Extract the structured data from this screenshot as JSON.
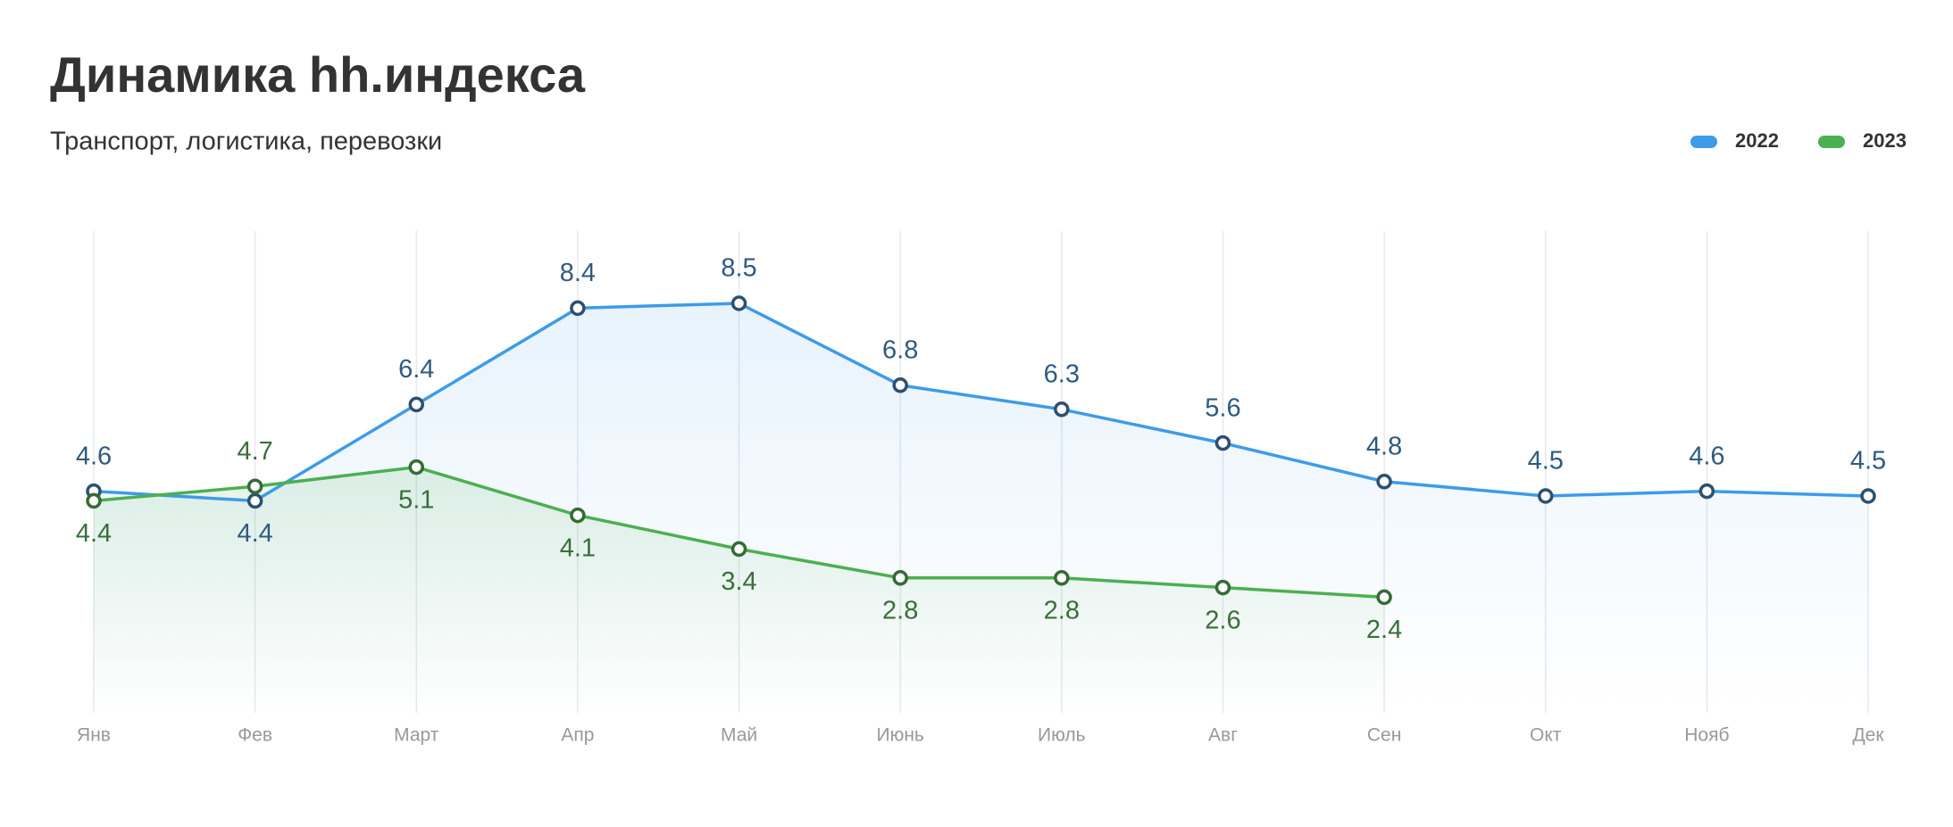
{
  "chart_data": {
    "type": "line",
    "title": "Динамика hh.индекса",
    "subtitle": "Транспорт, логистика, перевозки",
    "categories": [
      "Янв",
      "Фев",
      "Март",
      "Апр",
      "Май",
      "Июнь",
      "Июль",
      "Авг",
      "Сен",
      "Окт",
      "Нояб",
      "Дек"
    ],
    "series": [
      {
        "name": "2022",
        "color": "#3d9be9",
        "label_color": "#2f5a80",
        "point_color": "#2f4f6f",
        "values": [
          4.6,
          4.4,
          6.4,
          8.4,
          8.5,
          6.8,
          6.3,
          5.6,
          4.8,
          4.5,
          4.6,
          4.5
        ]
      },
      {
        "name": "2023",
        "color": "#4caf50",
        "label_color": "#3a6e3a",
        "point_color": "#356b35",
        "values": [
          4.4,
          4.7,
          5.1,
          4.1,
          3.4,
          2.8,
          2.8,
          2.6,
          2.4,
          null,
          null,
          null
        ]
      }
    ],
    "ylim": [
      0,
      10
    ],
    "grid": true,
    "legend": "top-right"
  }
}
